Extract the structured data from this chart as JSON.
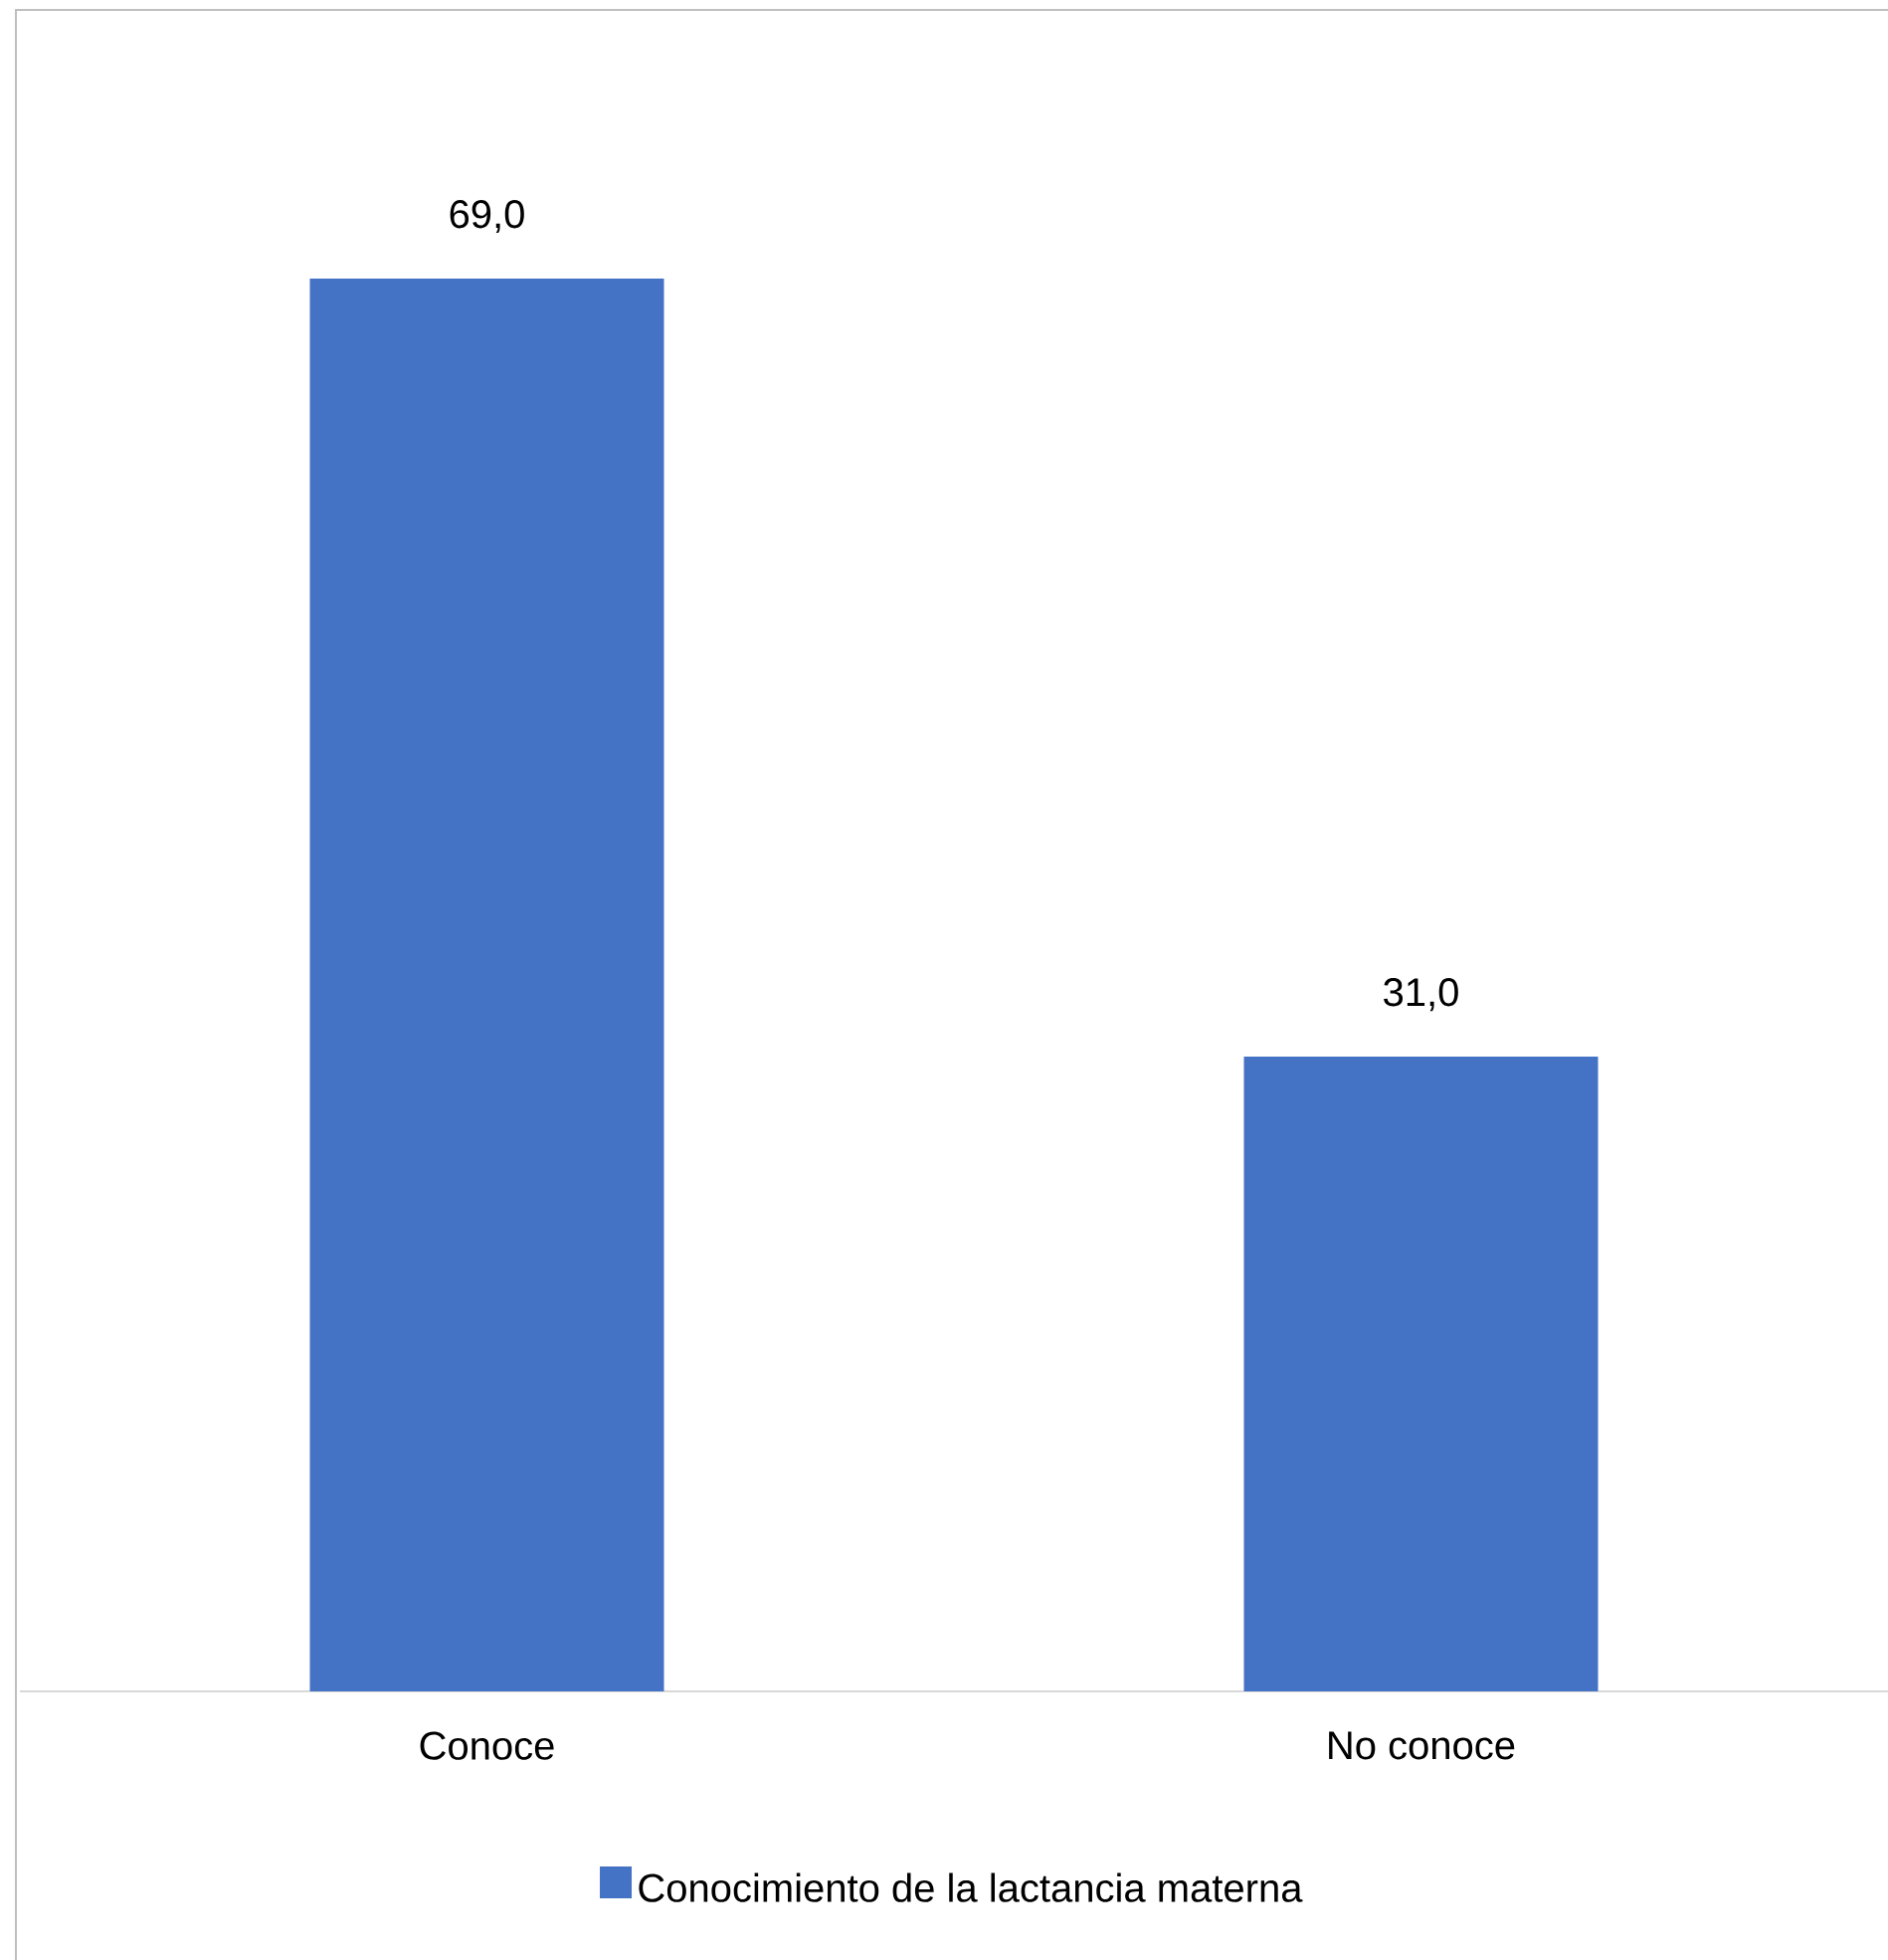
{
  "chart_data": {
    "type": "bar",
    "categories": [
      "Conoce",
      "No conoce"
    ],
    "series": [
      {
        "name": "Conocimiento de la lactancia materna",
        "color": "#4472c4",
        "values": [
          69.0,
          31.0
        ],
        "value_labels": [
          "69,0",
          "31,0"
        ]
      }
    ],
    "legend": "bottom"
  }
}
